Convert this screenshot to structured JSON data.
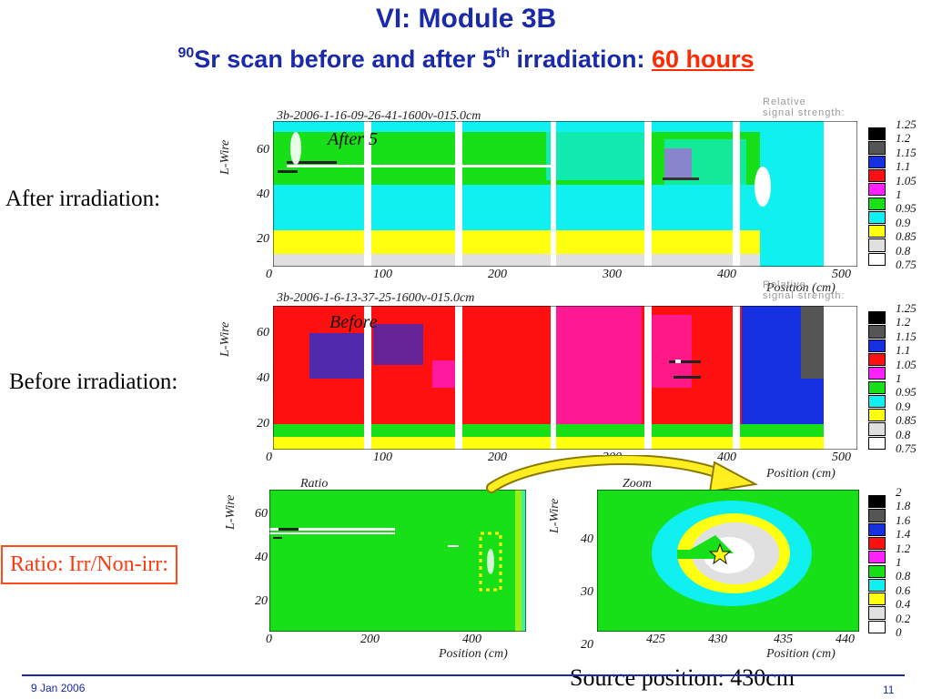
{
  "slide": {
    "title": "VI: Module 3B",
    "subtitle_sup_iso": "90",
    "subtitle_a": "Sr scan before and after 5",
    "subtitle_sup_th": "th",
    "subtitle_b": " irradiation: ",
    "subtitle_highlight": "60 hours",
    "footer_date": "9 Jan 2006",
    "page_number": "11",
    "source_position": "Source position: 430cm"
  },
  "labels": {
    "after": "After irradiation:",
    "before": "Before irradiation:",
    "ratio": "Ratio: Irr/Non-irr:"
  },
  "plots": {
    "after": {
      "header": "3b-2006-1-16-09-26-41-1600v-015.0cm",
      "tag": "After 5",
      "ylabel": "L-Wire",
      "xlabel": "Position (cm)",
      "scale_title_1": "Relative",
      "scale_title_2": "signal strength:",
      "xticks": [
        "0",
        "100",
        "200",
        "300",
        "400",
        "500"
      ],
      "yticks": [
        "60",
        "40",
        "20"
      ]
    },
    "before": {
      "header": "3b-2006-1-6-13-37-25-1600v-015.0cm",
      "tag": "Before",
      "ylabel": "L-Wire",
      "xlabel": "Position (cm)",
      "scale_title_1": "Relative",
      "scale_title_2": "signal strength:",
      "xticks": [
        "0",
        "100",
        "200",
        "300",
        "400",
        "500"
      ],
      "yticks": [
        "60",
        "40",
        "20"
      ]
    },
    "ratio": {
      "tag": "Ratio",
      "ylabel": "L-Wire",
      "xlabel": "Position (cm)",
      "xticks": [
        "0",
        "200",
        "400"
      ],
      "yticks": [
        "60",
        "40",
        "20"
      ]
    },
    "zoom": {
      "tag": "Zoom",
      "ylabel": "L-Wire",
      "xlabel": "Position (cm)",
      "xticks": [
        "425",
        "430",
        "435",
        "440"
      ],
      "yticks": [
        "40",
        "30",
        "20"
      ]
    }
  },
  "scales": {
    "main": [
      "1.25",
      "1.2",
      "1.15",
      "1.1",
      "1.05",
      "1",
      "0.95",
      "0.9",
      "0.85",
      "0.8",
      "0.75"
    ],
    "zoom": [
      "2",
      "1.8",
      "1.6",
      "1.4",
      "1.2",
      "1",
      "0.8",
      "0.6",
      "0.4",
      "0.2",
      "0"
    ],
    "colors": [
      "#000000",
      "#555555",
      "#1530e0",
      "#ff1010",
      "#ff20ff",
      "#18e018",
      "#10f0f0",
      "#ffff10",
      "#e0e0e0",
      "#ffffff"
    ]
  }
}
